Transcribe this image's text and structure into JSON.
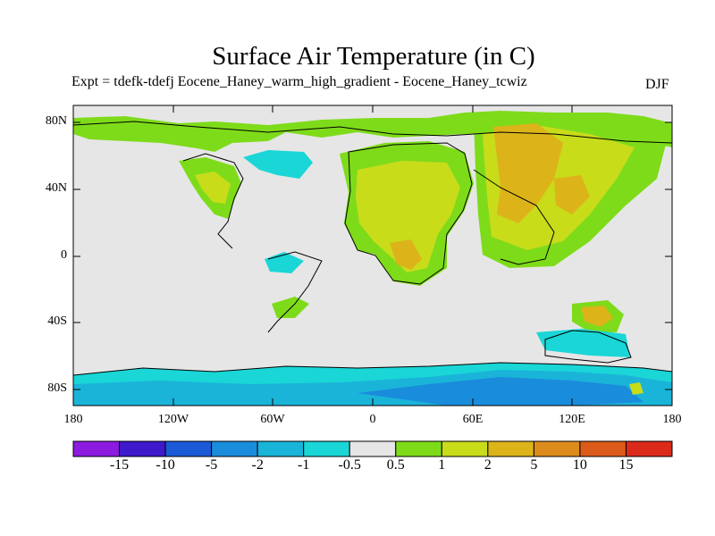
{
  "title": "Surface Air Temperature (in C)",
  "subtitle": "Expt = tdefk-tdefj Eocene_Haney_warm_high_gradient - Eocene_Haney_tcwiz",
  "season": "DJF",
  "map": {
    "projection": "cylindrical equidistant",
    "lon_range": [
      -180,
      180
    ],
    "lat_range": [
      -90,
      90
    ],
    "y_ticks": [
      "80N",
      "40N",
      "0",
      "40S",
      "80S"
    ],
    "x_ticks": [
      "180",
      "120W",
      "60W",
      "0",
      "60E",
      "120E",
      "180"
    ],
    "background_color": "#e6e6e6"
  },
  "colorbar": {
    "labels": [
      "-15",
      "-10",
      "-5",
      "-2",
      "-1",
      "-0.5",
      "0.5",
      "1",
      "2",
      "5",
      "10",
      "15"
    ],
    "colors": [
      "#8c1adf",
      "#3e19cc",
      "#1a5ad6",
      "#1a8cdc",
      "#1ab4d9",
      "#1ad6d6",
      "#e6e6e6",
      "#7edb1a",
      "#c8dc1a",
      "#dcb41a",
      "#dc8c1a",
      "#dc5a1a",
      "#dc2a1a"
    ]
  }
}
